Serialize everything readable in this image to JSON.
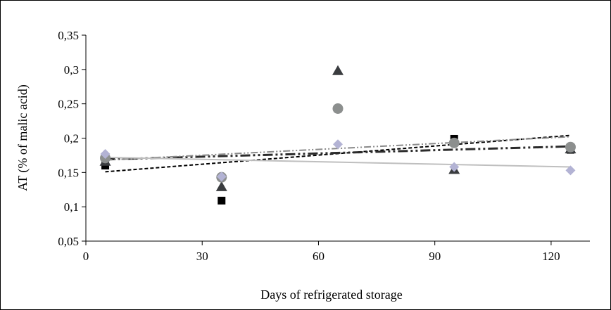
{
  "chart_data": {
    "type": "scatter",
    "title": "",
    "xlabel": "Days of refrigerated storage",
    "ylabel": "AT (% of malic acid)",
    "xlim": [
      0,
      130
    ],
    "ylim": [
      0.05,
      0.35
    ],
    "x_ticks": [
      0,
      30,
      60,
      90,
      120
    ],
    "x_tick_labels": [
      "0",
      "30",
      "60",
      "90",
      "120"
    ],
    "y_ticks": [
      0.05,
      0.1,
      0.15,
      0.2,
      0.25,
      0.3,
      0.35
    ],
    "y_tick_labels": [
      "0,05",
      "0,1",
      "0,15",
      "0,2",
      "0,25",
      "0,3",
      "0,35"
    ],
    "grid": false,
    "legend": "none",
    "x": [
      5,
      35,
      65,
      95,
      125
    ],
    "series": [
      {
        "marker": "square",
        "color": "#000000",
        "values": [
          0.16,
          0.109,
          0.243,
          0.199,
          0.183
        ],
        "trend": {
          "from": [
            5,
            0.151
          ],
          "to": [
            125,
            0.204
          ],
          "dash": "5 3",
          "color": "#000000",
          "width": 2
        }
      },
      {
        "marker": "triangle",
        "color": "#3a3c3f",
        "values": [
          0.166,
          0.129,
          0.298,
          0.154,
          0.184
        ],
        "trend": {
          "from": [
            5,
            0.169
          ],
          "to": [
            125,
            0.188
          ],
          "dash": "14 4 3 4 3 4",
          "color": "#2b2b2b",
          "width": 3
        }
      },
      {
        "marker": "circle",
        "color": "#8c8f8e",
        "values": [
          0.171,
          0.143,
          0.243,
          0.193,
          0.187
        ],
        "trend": {
          "from": [
            5,
            0.168
          ],
          "to": [
            125,
            0.202
          ],
          "dash": "10 3 2 3 2 3",
          "color": "#8a8a8a",
          "width": 2
        }
      },
      {
        "marker": "diamond",
        "color": "#b3b3d4",
        "values": [
          0.177,
          0.144,
          0.191,
          0.158,
          0.153
        ],
        "trend": {
          "from": [
            5,
            0.172
          ],
          "to": [
            125,
            0.158
          ],
          "dash": "",
          "color": "#bfbfbf",
          "width": 2
        }
      }
    ]
  }
}
